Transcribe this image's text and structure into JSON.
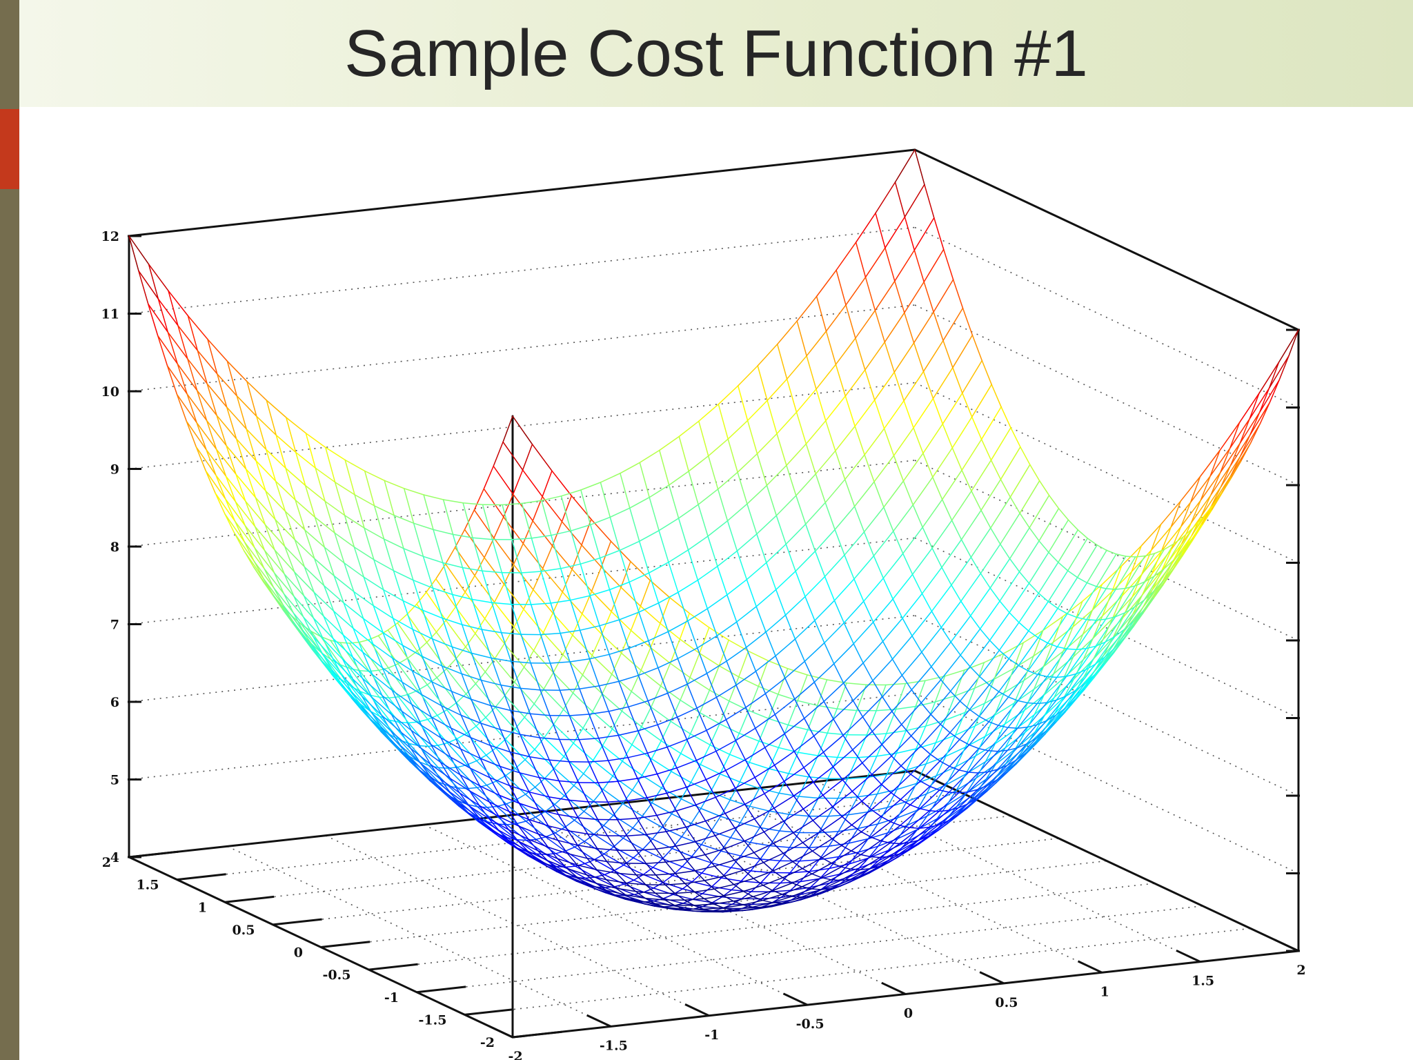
{
  "slide": {
    "title": "Sample Cost Function #1",
    "colors": {
      "left_bar": "#756d4e",
      "accent_bar": "#c4391c",
      "header_start": "#f4f7ea",
      "header_end": "#dde6c2",
      "title_text": "#262626"
    }
  },
  "chart_data": {
    "type": "surface-3d-mesh",
    "function": "z = x^2 + y^2 + 4",
    "x_range": [
      -2,
      2
    ],
    "y_range": [
      -2,
      2
    ],
    "zlim": [
      4,
      12
    ],
    "grid_samples": 40,
    "colormap": "jet",
    "z_ticks": [
      "4",
      "5",
      "6",
      "7",
      "8",
      "9",
      "10",
      "11",
      "12"
    ],
    "x_ticks": [
      "-2",
      "-1.5",
      "-1",
      "-0.5",
      "0",
      "0.5",
      "1",
      "1.5",
      "2"
    ],
    "y_ticks": [
      "-2",
      "-1.5",
      "-1",
      "-0.5",
      "0",
      "0.5",
      "1",
      "1.5",
      "2"
    ],
    "title": "",
    "xlabel": "",
    "ylabel": "",
    "zlabel": "",
    "grid": true,
    "legend": "none"
  }
}
